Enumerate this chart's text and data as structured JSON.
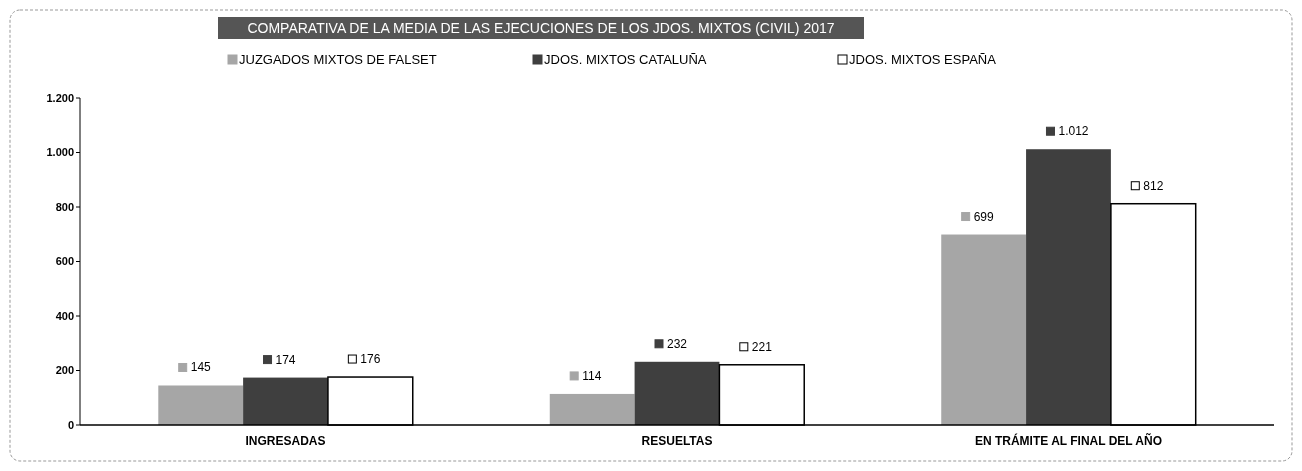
{
  "chart_data": {
    "type": "bar",
    "title": "COMPARATIVA DE LA MEDIA DE LAS EJECUCIONES  DE LOS JDOS. MIXTOS (CIVIL) 2017",
    "categories": [
      "INGRESADAS",
      "RESUELTAS",
      "EN TRÁMITE AL FINAL DEL AÑO"
    ],
    "series": [
      {
        "name": "JUZGADOS MIXTOS DE FALSET",
        "color": "#a6a6a6",
        "values": [
          145,
          114,
          699
        ],
        "value_labels": [
          "145",
          "114",
          "699"
        ]
      },
      {
        "name": "JDOS. MIXTOS CATALUÑA",
        "color": "#3f3f3f",
        "values": [
          174,
          232,
          1012
        ],
        "value_labels": [
          "174",
          "232",
          "1.012"
        ]
      },
      {
        "name": "JDOS. MIXTOS  ESPAÑA",
        "color": "#ffffff",
        "values": [
          176,
          221,
          812
        ],
        "value_labels": [
          "176",
          "221",
          "812"
        ]
      }
    ],
    "ylim": [
      0,
      1200
    ],
    "yticks": [
      0,
      200,
      400,
      600,
      800,
      {
        "value": 1000,
        "label": "1.000"
      },
      {
        "value": 1200,
        "label": "1.200"
      }
    ],
    "legend": "top",
    "grid": false
  }
}
